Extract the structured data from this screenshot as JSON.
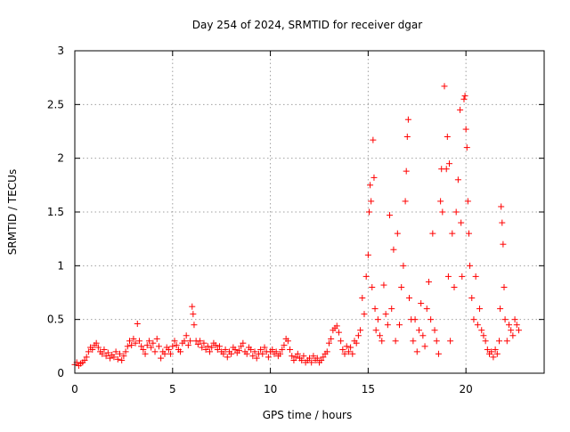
{
  "chart_data": {
    "type": "scatter",
    "title": "Day 254 of 2024, SRMTID for receiver dgar",
    "xlabel": "GPS time / hours",
    "ylabel": "SRMTID / TECUs",
    "xlim": [
      0,
      24
    ],
    "ylim": [
      0,
      3
    ],
    "x_ticks": [
      0,
      5,
      10,
      15,
      20
    ],
    "y_ticks": [
      0,
      0.5,
      1,
      1.5,
      2,
      2.5,
      3
    ],
    "x_tick_labels": [
      "0",
      "5",
      "10",
      "15",
      "20"
    ],
    "y_tick_labels": [
      "0",
      "0.5",
      "1",
      "1.5",
      "2",
      "2.5",
      "3"
    ],
    "grid": true,
    "marker": "+",
    "color": "#ff0000",
    "series": [
      {
        "name": "SRMTID",
        "points": [
          [
            0.0,
            0.08
          ],
          [
            0.1,
            0.1
          ],
          [
            0.2,
            0.07
          ],
          [
            0.3,
            0.09
          ],
          [
            0.4,
            0.1
          ],
          [
            0.5,
            0.12
          ],
          [
            0.6,
            0.15
          ],
          [
            0.7,
            0.2
          ],
          [
            0.8,
            0.24
          ],
          [
            0.9,
            0.22
          ],
          [
            1.0,
            0.26
          ],
          [
            1.1,
            0.28
          ],
          [
            1.2,
            0.24
          ],
          [
            1.3,
            0.2
          ],
          [
            1.4,
            0.18
          ],
          [
            1.5,
            0.22
          ],
          [
            1.6,
            0.16
          ],
          [
            1.7,
            0.19
          ],
          [
            1.8,
            0.14
          ],
          [
            1.9,
            0.17
          ],
          [
            2.0,
            0.15
          ],
          [
            2.1,
            0.2
          ],
          [
            2.2,
            0.13
          ],
          [
            2.3,
            0.18
          ],
          [
            2.4,
            0.12
          ],
          [
            2.5,
            0.16
          ],
          [
            2.6,
            0.2
          ],
          [
            2.7,
            0.25
          ],
          [
            2.8,
            0.3
          ],
          [
            2.9,
            0.26
          ],
          [
            3.0,
            0.32
          ],
          [
            3.1,
            0.28
          ],
          [
            3.2,
            0.46
          ],
          [
            3.3,
            0.3
          ],
          [
            3.4,
            0.25
          ],
          [
            3.5,
            0.22
          ],
          [
            3.6,
            0.18
          ],
          [
            3.7,
            0.26
          ],
          [
            3.8,
            0.3
          ],
          [
            3.9,
            0.24
          ],
          [
            4.0,
            0.28
          ],
          [
            4.1,
            0.2
          ],
          [
            4.2,
            0.32
          ],
          [
            4.3,
            0.25
          ],
          [
            4.4,
            0.14
          ],
          [
            4.5,
            0.2
          ],
          [
            4.6,
            0.18
          ],
          [
            4.7,
            0.24
          ],
          [
            4.8,
            0.22
          ],
          [
            4.9,
            0.18
          ],
          [
            5.0,
            0.25
          ],
          [
            5.1,
            0.3
          ],
          [
            5.2,
            0.26
          ],
          [
            5.3,
            0.22
          ],
          [
            5.4,
            0.2
          ],
          [
            5.5,
            0.28
          ],
          [
            5.6,
            0.3
          ],
          [
            5.7,
            0.35
          ],
          [
            5.8,
            0.26
          ],
          [
            5.9,
            0.3
          ],
          [
            6.0,
            0.62
          ],
          [
            6.05,
            0.55
          ],
          [
            6.1,
            0.45
          ],
          [
            6.2,
            0.3
          ],
          [
            6.3,
            0.27
          ],
          [
            6.4,
            0.3
          ],
          [
            6.5,
            0.24
          ],
          [
            6.6,
            0.28
          ],
          [
            6.7,
            0.22
          ],
          [
            6.8,
            0.25
          ],
          [
            6.9,
            0.2
          ],
          [
            7.0,
            0.24
          ],
          [
            7.1,
            0.28
          ],
          [
            7.2,
            0.26
          ],
          [
            7.3,
            0.22
          ],
          [
            7.4,
            0.25
          ],
          [
            7.5,
            0.2
          ],
          [
            7.6,
            0.18
          ],
          [
            7.7,
            0.22
          ],
          [
            7.8,
            0.15
          ],
          [
            7.9,
            0.2
          ],
          [
            8.0,
            0.18
          ],
          [
            8.1,
            0.24
          ],
          [
            8.2,
            0.22
          ],
          [
            8.3,
            0.19
          ],
          [
            8.4,
            0.21
          ],
          [
            8.5,
            0.25
          ],
          [
            8.6,
            0.28
          ],
          [
            8.7,
            0.2
          ],
          [
            8.8,
            0.18
          ],
          [
            8.9,
            0.24
          ],
          [
            9.0,
            0.22
          ],
          [
            9.1,
            0.16
          ],
          [
            9.2,
            0.2
          ],
          [
            9.3,
            0.14
          ],
          [
            9.4,
            0.18
          ],
          [
            9.5,
            0.22
          ],
          [
            9.6,
            0.18
          ],
          [
            9.7,
            0.24
          ],
          [
            9.8,
            0.2
          ],
          [
            9.9,
            0.15
          ],
          [
            10.0,
            0.2
          ],
          [
            10.1,
            0.22
          ],
          [
            10.2,
            0.18
          ],
          [
            10.3,
            0.2
          ],
          [
            10.4,
            0.16
          ],
          [
            10.5,
            0.18
          ],
          [
            10.6,
            0.22
          ],
          [
            10.7,
            0.26
          ],
          [
            10.8,
            0.32
          ],
          [
            10.9,
            0.3
          ],
          [
            11.0,
            0.22
          ],
          [
            11.1,
            0.16
          ],
          [
            11.2,
            0.12
          ],
          [
            11.3,
            0.15
          ],
          [
            11.4,
            0.18
          ],
          [
            11.5,
            0.14
          ],
          [
            11.6,
            0.12
          ],
          [
            11.7,
            0.16
          ],
          [
            11.8,
            0.1
          ],
          [
            11.9,
            0.12
          ],
          [
            12.0,
            0.14
          ],
          [
            12.1,
            0.1
          ],
          [
            12.2,
            0.16
          ],
          [
            12.3,
            0.12
          ],
          [
            12.4,
            0.14
          ],
          [
            12.5,
            0.1
          ],
          [
            12.6,
            0.12
          ],
          [
            12.7,
            0.15
          ],
          [
            12.8,
            0.18
          ],
          [
            12.9,
            0.2
          ],
          [
            13.0,
            0.28
          ],
          [
            13.1,
            0.32
          ],
          [
            13.2,
            0.4
          ],
          [
            13.3,
            0.42
          ],
          [
            13.4,
            0.44
          ],
          [
            13.5,
            0.38
          ],
          [
            13.6,
            0.3
          ],
          [
            13.7,
            0.22
          ],
          [
            13.8,
            0.18
          ],
          [
            13.9,
            0.25
          ],
          [
            14.0,
            0.2
          ],
          [
            14.1,
            0.24
          ],
          [
            14.2,
            0.18
          ],
          [
            14.3,
            0.3
          ],
          [
            14.4,
            0.28
          ],
          [
            14.5,
            0.35
          ],
          [
            14.6,
            0.4
          ],
          [
            14.7,
            0.7
          ],
          [
            14.8,
            0.55
          ],
          [
            14.9,
            0.9
          ],
          [
            15.0,
            1.1
          ],
          [
            15.05,
            1.5
          ],
          [
            15.1,
            1.75
          ],
          [
            15.15,
            1.6
          ],
          [
            15.2,
            0.8
          ],
          [
            15.25,
            2.17
          ],
          [
            15.3,
            1.82
          ],
          [
            15.35,
            0.6
          ],
          [
            15.4,
            0.4
          ],
          [
            15.5,
            0.5
          ],
          [
            15.6,
            0.35
          ],
          [
            15.7,
            0.3
          ],
          [
            15.8,
            0.82
          ],
          [
            15.9,
            0.55
          ],
          [
            16.0,
            0.45
          ],
          [
            16.1,
            1.47
          ],
          [
            16.2,
            0.6
          ],
          [
            16.3,
            1.15
          ],
          [
            16.4,
            0.3
          ],
          [
            16.5,
            1.3
          ],
          [
            16.6,
            0.45
          ],
          [
            16.7,
            0.8
          ],
          [
            16.8,
            1.0
          ],
          [
            16.9,
            1.6
          ],
          [
            16.95,
            1.88
          ],
          [
            17.0,
            2.2
          ],
          [
            17.05,
            2.36
          ],
          [
            17.1,
            0.7
          ],
          [
            17.2,
            0.5
          ],
          [
            17.3,
            0.3
          ],
          [
            17.4,
            0.5
          ],
          [
            17.5,
            0.2
          ],
          [
            17.6,
            0.4
          ],
          [
            17.7,
            0.65
          ],
          [
            17.8,
            0.35
          ],
          [
            17.9,
            0.25
          ],
          [
            18.0,
            0.6
          ],
          [
            18.1,
            0.85
          ],
          [
            18.2,
            0.5
          ],
          [
            18.3,
            1.3
          ],
          [
            18.4,
            0.4
          ],
          [
            18.5,
            0.3
          ],
          [
            18.6,
            0.18
          ],
          [
            18.7,
            1.6
          ],
          [
            18.75,
            1.9
          ],
          [
            18.8,
            1.5
          ],
          [
            18.9,
            2.67
          ],
          [
            19.0,
            1.9
          ],
          [
            19.05,
            2.2
          ],
          [
            19.1,
            0.9
          ],
          [
            19.15,
            1.95
          ],
          [
            19.2,
            0.3
          ],
          [
            19.3,
            1.3
          ],
          [
            19.4,
            0.8
          ],
          [
            19.5,
            1.5
          ],
          [
            19.6,
            1.8
          ],
          [
            19.7,
            2.45
          ],
          [
            19.75,
            1.4
          ],
          [
            19.8,
            0.9
          ],
          [
            19.9,
            2.55
          ],
          [
            19.95,
            2.58
          ],
          [
            20.0,
            2.27
          ],
          [
            20.05,
            2.1
          ],
          [
            20.1,
            1.6
          ],
          [
            20.15,
            1.3
          ],
          [
            20.2,
            1.0
          ],
          [
            20.3,
            0.7
          ],
          [
            20.4,
            0.5
          ],
          [
            20.5,
            0.9
          ],
          [
            20.6,
            0.45
          ],
          [
            20.7,
            0.6
          ],
          [
            20.8,
            0.4
          ],
          [
            20.9,
            0.35
          ],
          [
            21.0,
            0.3
          ],
          [
            21.1,
            0.22
          ],
          [
            21.2,
            0.18
          ],
          [
            21.3,
            0.2
          ],
          [
            21.4,
            0.15
          ],
          [
            21.5,
            0.22
          ],
          [
            21.6,
            0.18
          ],
          [
            21.7,
            0.3
          ],
          [
            21.75,
            0.6
          ],
          [
            21.8,
            1.55
          ],
          [
            21.85,
            1.4
          ],
          [
            21.9,
            1.2
          ],
          [
            21.95,
            0.8
          ],
          [
            22.0,
            0.5
          ],
          [
            22.1,
            0.3
          ],
          [
            22.2,
            0.45
          ],
          [
            22.3,
            0.4
          ],
          [
            22.4,
            0.35
          ],
          [
            22.5,
            0.5
          ],
          [
            22.6,
            0.45
          ],
          [
            22.7,
            0.4
          ]
        ]
      }
    ]
  }
}
